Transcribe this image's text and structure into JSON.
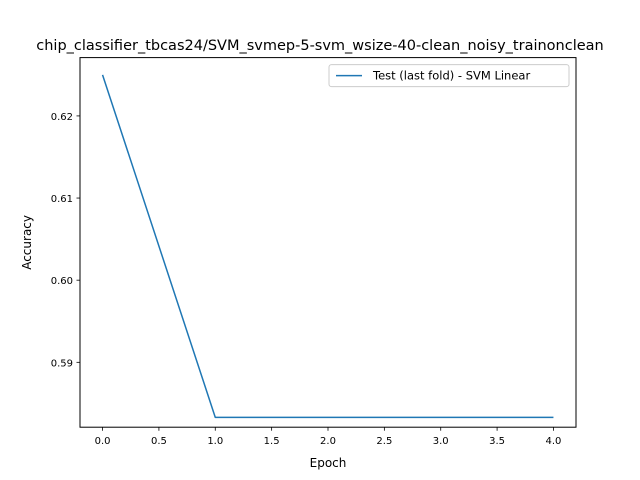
{
  "chart_data": {
    "type": "line",
    "title": "chip_classifier_tbcas24/SVM_svmep-5-svm_wsize-40-clean_noisy_trainonclean",
    "xlabel": "Epoch",
    "ylabel": "Accuracy",
    "xlim": [
      -0.2,
      4.2
    ],
    "ylim": [
      0.5821,
      0.6271
    ],
    "x_ticks": [
      0.0,
      0.5,
      1.0,
      1.5,
      2.0,
      2.5,
      3.0,
      3.5,
      4.0
    ],
    "x_tick_labels": [
      "0.0",
      "0.5",
      "1.0",
      "1.5",
      "2.0",
      "2.5",
      "3.0",
      "3.5",
      "4.0"
    ],
    "y_ticks": [
      0.59,
      0.6,
      0.61,
      0.62
    ],
    "y_tick_labels": [
      "0.59",
      "0.60",
      "0.61",
      "0.62"
    ],
    "grid": false,
    "legend_position": "top-right",
    "series": [
      {
        "name": "Test (last fold) - SVM Linear",
        "color": "#1f77b4",
        "x": [
          0,
          1,
          2,
          3,
          4
        ],
        "values": [
          0.625,
          0.5833,
          0.5833,
          0.5833,
          0.5833
        ]
      }
    ]
  }
}
